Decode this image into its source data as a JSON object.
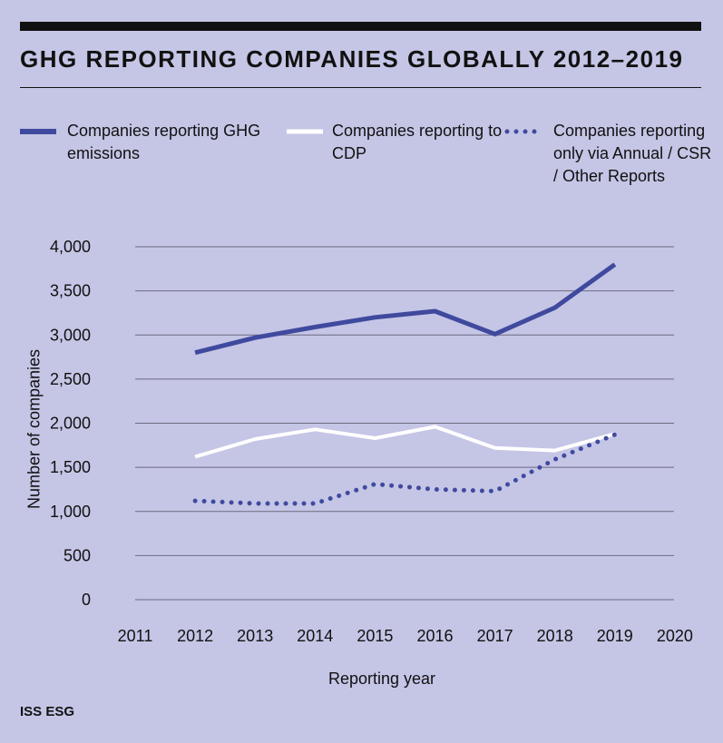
{
  "title": "GHG REPORTING COMPANIES GLOBALLY 2012–2019",
  "source": "ISS ESG",
  "colors": {
    "background": "#c5c5e6",
    "ghg": "#3f4a9e",
    "cdp": "#ffffff",
    "other": "#3f4a9e",
    "grid": "#6b6b80"
  },
  "chart_data": {
    "type": "line",
    "title": "GHG REPORTING COMPANIES GLOBALLY 2012–2019",
    "xlabel": "Reporting year",
    "ylabel": "Number of companies",
    "x_ticks": [
      "2011",
      "2012",
      "2013",
      "2014",
      "2015",
      "2016",
      "2017",
      "2018",
      "2019",
      "2020"
    ],
    "y_ticks": [
      "0",
      "500",
      "1,000",
      "1,500",
      "2,000",
      "2,500",
      "3,000",
      "3,500",
      "4,000"
    ],
    "xlim": [
      2011,
      2020
    ],
    "ylim": [
      0,
      4000
    ],
    "grid": true,
    "legend_position": "top",
    "x": [
      2012,
      2013,
      2014,
      2015,
      2016,
      2017,
      2018,
      2019
    ],
    "series": [
      {
        "key": "ghg",
        "name": "Companies reporting GHG emissions",
        "style": "solid-thick",
        "values": [
          2800,
          2970,
          3090,
          3200,
          3270,
          3010,
          3310,
          3800
        ]
      },
      {
        "key": "cdp",
        "name": "Companies reporting to CDP",
        "style": "solid",
        "values": [
          1620,
          1820,
          1930,
          1830,
          1960,
          1720,
          1690,
          1880
        ]
      },
      {
        "key": "other",
        "name": "Companies reporting only via Annual / CSR / Other Reports",
        "style": "dotted",
        "values": [
          1120,
          1090,
          1090,
          1310,
          1250,
          1230,
          1590,
          1870
        ]
      }
    ]
  }
}
